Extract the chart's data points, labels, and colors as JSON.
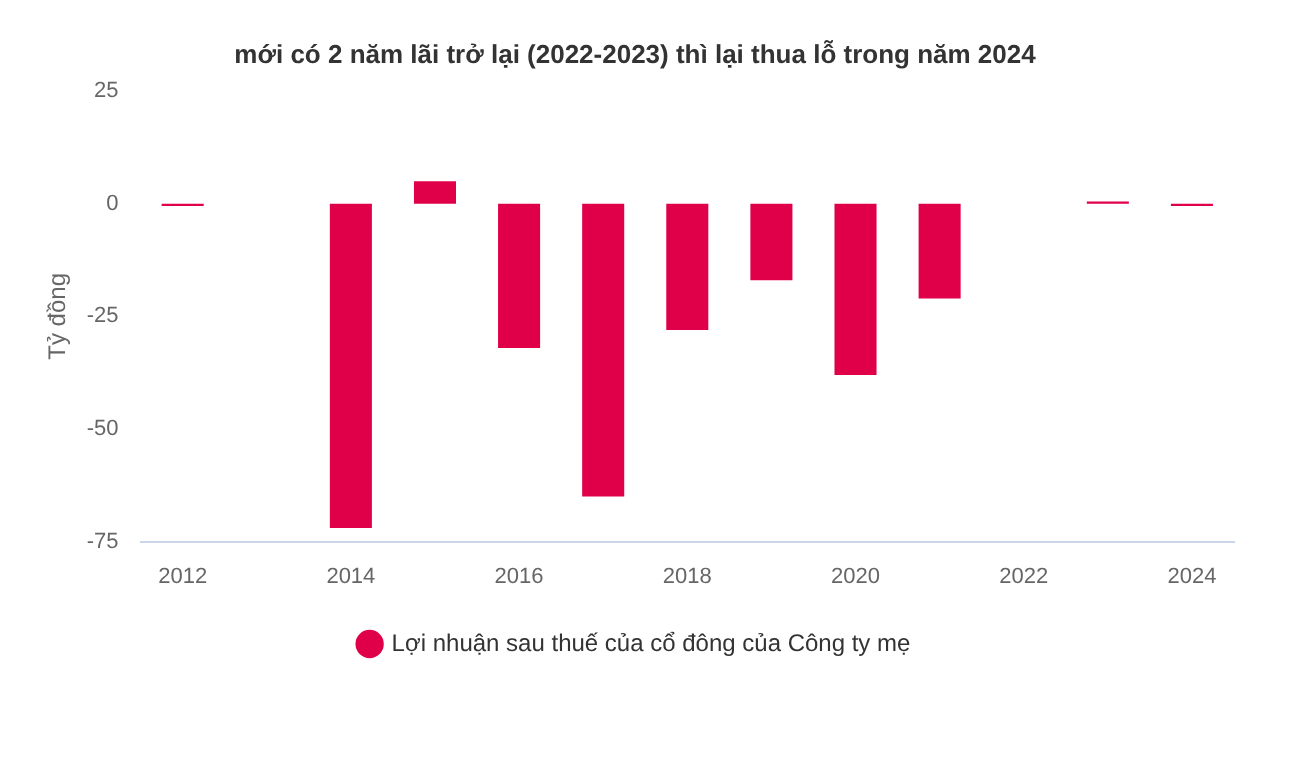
{
  "chart_data": {
    "type": "bar",
    "title": "mới có 2 năm lãi trở lại (2022-2023) thì lại thua lỗ trong năm 2024",
    "ylabel": "Tỷ đồng",
    "categories": [
      "2012",
      null,
      "2014",
      null,
      "2016",
      null,
      "2018",
      null,
      "2020",
      null,
      "2022",
      null,
      "2024"
    ],
    "series": [
      {
        "name": "Lợi nhuận sau thuế của cổ đông của Công ty mẹ",
        "color": "#e0004a",
        "values": [
          -0.5,
          null,
          -72,
          5,
          -32,
          -65,
          -28,
          -17,
          -38,
          -21,
          null,
          0.5,
          -0.5
        ]
      }
    ],
    "ylim": [
      -75,
      25
    ],
    "yticks": [
      -75,
      -50,
      -25,
      0,
      25
    ],
    "grid": false,
    "legend": "bottom"
  }
}
